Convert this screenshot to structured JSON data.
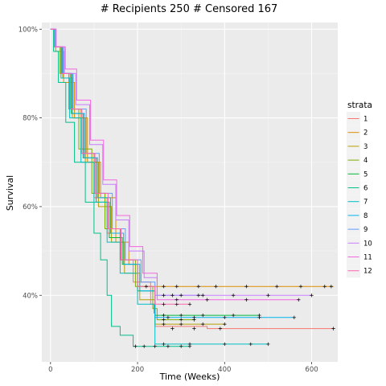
{
  "chart_data": {
    "type": "line",
    "title": "# Recipients 250 # Censored 167",
    "xlabel": "Time (Weeks)",
    "ylabel": "Survival",
    "xlim": [
      -20,
      660
    ],
    "ylim": [
      0.25,
      1.015
    ],
    "x_ticks": [
      0,
      200,
      400,
      600
    ],
    "x_tick_labels": [
      "0",
      "200",
      "400",
      "600"
    ],
    "y_ticks": [
      0.4,
      0.6,
      0.8,
      1.0
    ],
    "y_tick_labels": [
      "40%",
      "60%",
      "80%",
      "100%"
    ],
    "grid": true,
    "legend_title": "strata",
    "legend_position": "right",
    "series": [
      {
        "name": "1",
        "color": "#F8766D",
        "points": [
          [
            0,
            1.0
          ],
          [
            10,
            0.96
          ],
          [
            25,
            0.9
          ],
          [
            45,
            0.82
          ],
          [
            70,
            0.72
          ],
          [
            100,
            0.62
          ],
          [
            130,
            0.54
          ],
          [
            160,
            0.48
          ],
          [
            190,
            0.43
          ],
          [
            230,
            0.38
          ],
          [
            240,
            0.33
          ],
          [
            360,
            0.325
          ],
          [
            650,
            0.325
          ]
        ],
        "censors": [
          [
            280,
            0.325
          ],
          [
            330,
            0.325
          ],
          [
            390,
            0.325
          ],
          [
            650,
            0.325
          ]
        ]
      },
      {
        "name": "2",
        "color": "#DE8C00",
        "points": [
          [
            0,
            1.0
          ],
          [
            12,
            0.95
          ],
          [
            30,
            0.88
          ],
          [
            55,
            0.8
          ],
          [
            85,
            0.7
          ],
          [
            115,
            0.62
          ],
          [
            150,
            0.52
          ],
          [
            180,
            0.47
          ],
          [
            200,
            0.42
          ],
          [
            250,
            0.42
          ],
          [
            650,
            0.42
          ]
        ],
        "censors": [
          [
            220,
            0.42
          ],
          [
            260,
            0.42
          ],
          [
            290,
            0.42
          ],
          [
            340,
            0.42
          ],
          [
            380,
            0.42
          ],
          [
            450,
            0.42
          ],
          [
            520,
            0.42
          ],
          [
            575,
            0.42
          ],
          [
            630,
            0.42
          ],
          [
            645,
            0.42
          ]
        ]
      },
      {
        "name": "3",
        "color": "#B79F00",
        "points": [
          [
            0,
            1.0
          ],
          [
            10,
            0.96
          ],
          [
            28,
            0.89
          ],
          [
            50,
            0.8
          ],
          [
            80,
            0.7
          ],
          [
            110,
            0.6
          ],
          [
            140,
            0.52
          ],
          [
            170,
            0.45
          ],
          [
            205,
            0.39
          ],
          [
            240,
            0.335
          ],
          [
            400,
            0.335
          ]
        ],
        "censors": [
          [
            260,
            0.335
          ],
          [
            300,
            0.335
          ],
          [
            350,
            0.335
          ],
          [
            400,
            0.335
          ]
        ]
      },
      {
        "name": "4",
        "color": "#7CAE00",
        "points": [
          [
            0,
            1.0
          ],
          [
            8,
            0.96
          ],
          [
            22,
            0.9
          ],
          [
            42,
            0.82
          ],
          [
            65,
            0.73
          ],
          [
            95,
            0.63
          ],
          [
            125,
            0.55
          ],
          [
            160,
            0.48
          ],
          [
            195,
            0.42
          ],
          [
            235,
            0.37
          ],
          [
            245,
            0.345
          ],
          [
            330,
            0.345
          ]
        ],
        "censors": [
          [
            260,
            0.345
          ],
          [
            300,
            0.345
          ],
          [
            330,
            0.345
          ]
        ]
      },
      {
        "name": "5",
        "color": "#00BA38",
        "points": [
          [
            0,
            1.0
          ],
          [
            10,
            0.96
          ],
          [
            26,
            0.9
          ],
          [
            48,
            0.81
          ],
          [
            75,
            0.71
          ],
          [
            105,
            0.61
          ],
          [
            135,
            0.53
          ],
          [
            165,
            0.47
          ],
          [
            200,
            0.41
          ],
          [
            240,
            0.355
          ],
          [
            480,
            0.355
          ]
        ],
        "censors": [
          [
            260,
            0.355
          ],
          [
            300,
            0.355
          ],
          [
            350,
            0.355
          ],
          [
            420,
            0.355
          ],
          [
            480,
            0.355
          ]
        ]
      },
      {
        "name": "6",
        "color": "#00C08B",
        "points": [
          [
            0,
            1.0
          ],
          [
            7,
            0.95
          ],
          [
            18,
            0.88
          ],
          [
            35,
            0.79
          ],
          [
            55,
            0.7
          ],
          [
            80,
            0.61
          ],
          [
            100,
            0.54
          ],
          [
            115,
            0.48
          ],
          [
            130,
            0.4
          ],
          [
            140,
            0.33
          ],
          [
            160,
            0.31
          ],
          [
            180,
            0.31
          ],
          [
            190,
            0.285
          ],
          [
            320,
            0.285
          ]
        ],
        "censors": [
          [
            195,
            0.285
          ],
          [
            215,
            0.285
          ],
          [
            240,
            0.285
          ],
          [
            270,
            0.285
          ],
          [
            300,
            0.285
          ],
          [
            320,
            0.285
          ]
        ]
      },
      {
        "name": "7",
        "color": "#00BFC4",
        "points": [
          [
            0,
            1.0
          ],
          [
            9,
            0.96
          ],
          [
            24,
            0.89
          ],
          [
            44,
            0.8
          ],
          [
            70,
            0.7
          ],
          [
            100,
            0.61
          ],
          [
            130,
            0.52
          ],
          [
            160,
            0.45
          ],
          [
            200,
            0.38
          ],
          [
            238,
            0.36
          ],
          [
            240,
            0.29
          ],
          [
            500,
            0.29
          ]
        ],
        "censors": [
          [
            260,
            0.29
          ],
          [
            320,
            0.29
          ],
          [
            400,
            0.29
          ],
          [
            460,
            0.29
          ],
          [
            500,
            0.29
          ]
        ]
      },
      {
        "name": "8",
        "color": "#00B4F0",
        "points": [
          [
            0,
            1.0
          ],
          [
            10,
            0.96
          ],
          [
            27,
            0.9
          ],
          [
            50,
            0.81
          ],
          [
            78,
            0.71
          ],
          [
            108,
            0.62
          ],
          [
            138,
            0.54
          ],
          [
            168,
            0.47
          ],
          [
            205,
            0.41
          ],
          [
            240,
            0.35
          ],
          [
            560,
            0.35
          ]
        ],
        "censors": [
          [
            270,
            0.35
          ],
          [
            330,
            0.35
          ],
          [
            400,
            0.35
          ],
          [
            480,
            0.35
          ],
          [
            560,
            0.35
          ]
        ]
      },
      {
        "name": "9",
        "color": "#619CFF",
        "points": [
          [
            0,
            1.0
          ],
          [
            11,
            0.96
          ],
          [
            29,
            0.9
          ],
          [
            52,
            0.82
          ],
          [
            82,
            0.72
          ],
          [
            112,
            0.63
          ],
          [
            142,
            0.55
          ],
          [
            172,
            0.48
          ],
          [
            208,
            0.43
          ],
          [
            240,
            0.4
          ],
          [
            350,
            0.4
          ]
        ],
        "censors": [
          [
            260,
            0.4
          ],
          [
            300,
            0.4
          ],
          [
            350,
            0.4
          ]
        ]
      },
      {
        "name": "10",
        "color": "#C77CFF",
        "points": [
          [
            0,
            1.0
          ],
          [
            12,
            0.96
          ],
          [
            32,
            0.9
          ],
          [
            58,
            0.83
          ],
          [
            90,
            0.74
          ],
          [
            120,
            0.65
          ],
          [
            150,
            0.57
          ],
          [
            180,
            0.5
          ],
          [
            215,
            0.44
          ],
          [
            245,
            0.4
          ],
          [
            600,
            0.4
          ]
        ],
        "censors": [
          [
            280,
            0.4
          ],
          [
            340,
            0.4
          ],
          [
            420,
            0.4
          ],
          [
            500,
            0.4
          ],
          [
            600,
            0.4
          ]
        ]
      },
      {
        "name": "11",
        "color": "#F564E3",
        "points": [
          [
            0,
            1.0
          ],
          [
            13,
            0.96
          ],
          [
            34,
            0.91
          ],
          [
            60,
            0.84
          ],
          [
            92,
            0.75
          ],
          [
            122,
            0.66
          ],
          [
            152,
            0.58
          ],
          [
            182,
            0.51
          ],
          [
            212,
            0.45
          ],
          [
            245,
            0.39
          ],
          [
            570,
            0.39
          ]
        ],
        "censors": [
          [
            290,
            0.39
          ],
          [
            360,
            0.39
          ],
          [
            450,
            0.39
          ],
          [
            570,
            0.39
          ]
        ]
      },
      {
        "name": "12",
        "color": "#FF64B0",
        "points": [
          [
            0,
            1.0
          ],
          [
            9,
            0.96
          ],
          [
            24,
            0.9
          ],
          [
            46,
            0.82
          ],
          [
            72,
            0.72
          ],
          [
            102,
            0.63
          ],
          [
            132,
            0.55
          ],
          [
            162,
            0.48
          ],
          [
            200,
            0.42
          ],
          [
            240,
            0.38
          ],
          [
            320,
            0.38
          ]
        ],
        "censors": [
          [
            260,
            0.38
          ],
          [
            290,
            0.38
          ],
          [
            320,
            0.38
          ]
        ]
      }
    ]
  }
}
